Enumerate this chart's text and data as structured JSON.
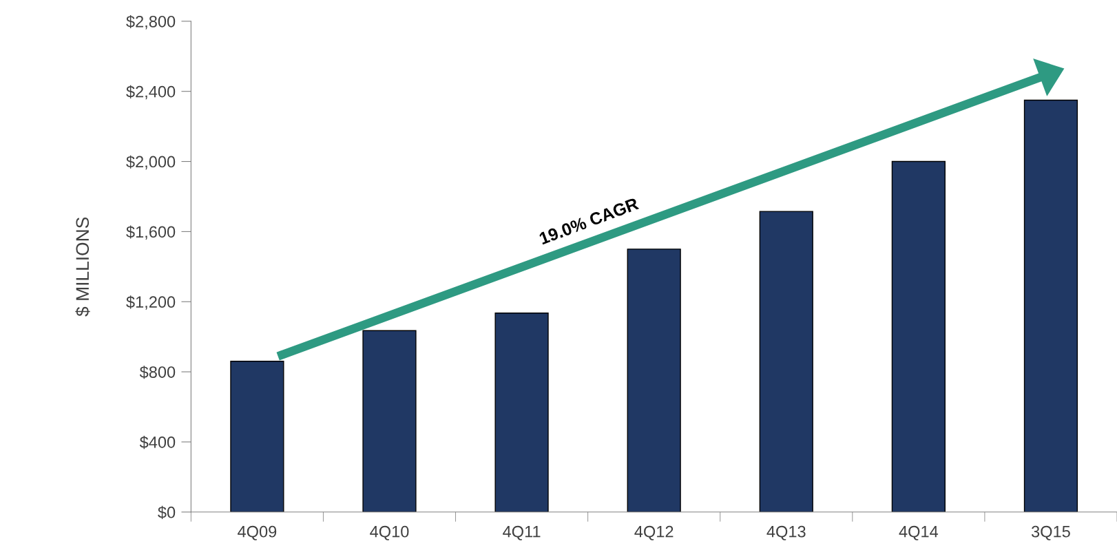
{
  "chart_data": {
    "type": "bar",
    "ylabel": "$ MILLIONS",
    "categories": [
      "4Q09",
      "4Q10",
      "4Q11",
      "4Q12",
      "4Q13",
      "4Q14",
      "3Q15"
    ],
    "values": [
      860,
      1035,
      1135,
      1500,
      1715,
      2000,
      2350
    ],
    "color": "#203864",
    "ylim": [
      0,
      2800
    ],
    "yticks": [
      {
        "value": 0,
        "label": "$0"
      },
      {
        "value": 400,
        "label": "$400"
      },
      {
        "value": 800,
        "label": "$800"
      },
      {
        "value": 1200,
        "label": "$1,200"
      },
      {
        "value": 1600,
        "label": "$1,600"
      },
      {
        "value": 2000,
        "label": "$2,000"
      },
      {
        "value": 2400,
        "label": "$2,400"
      },
      {
        "value": 2800,
        "label": "$2,800"
      }
    ],
    "annotations": [
      "19.0% CAGR"
    ]
  }
}
